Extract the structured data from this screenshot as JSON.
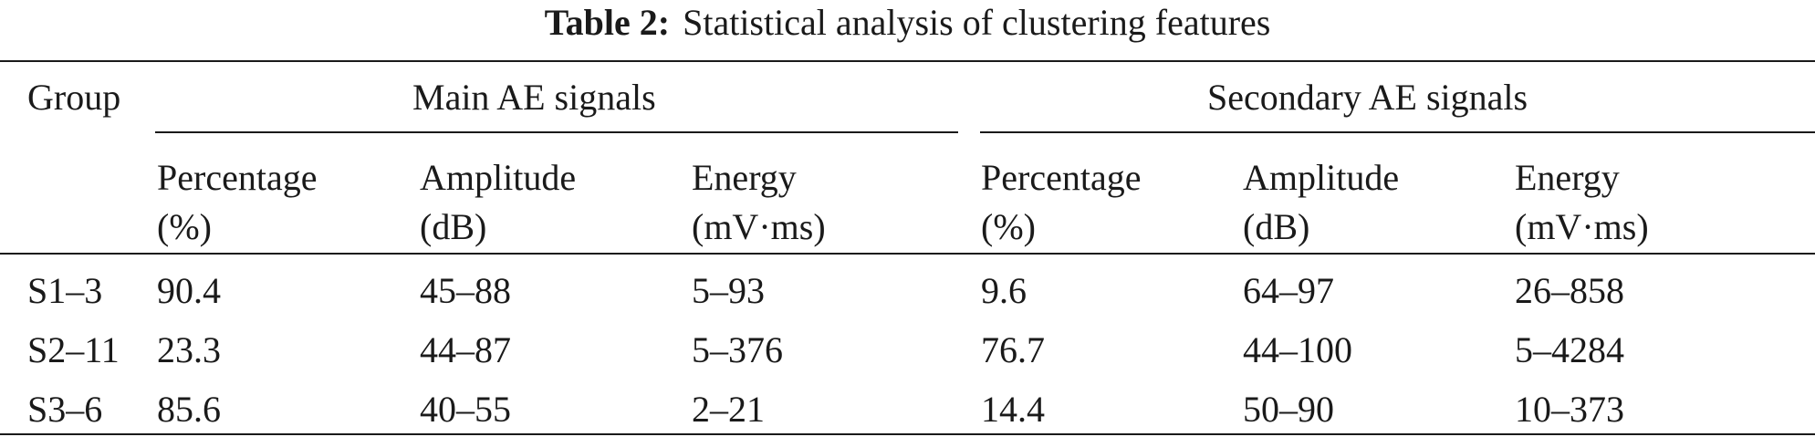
{
  "caption": {
    "label": "Table 2:",
    "title": "Statistical analysis of clustering features"
  },
  "header": {
    "group": "Group",
    "main_group": "Main AE signals",
    "secondary_group": "Secondary AE signals",
    "main_columns": [
      {
        "name": "Percentage",
        "unit": "(%)"
      },
      {
        "name": "Amplitude",
        "unit": "(dB)"
      },
      {
        "name": "Energy",
        "unit": "(mV·ms)"
      }
    ],
    "secondary_columns": [
      {
        "name": "Percentage",
        "unit": "(%)"
      },
      {
        "name": "Amplitude",
        "unit": "(dB)"
      },
      {
        "name": "Energy",
        "unit": "(mV·ms)"
      }
    ]
  },
  "rows": [
    {
      "group": "S1–3",
      "main": [
        "90.4",
        "45–88",
        "5–93"
      ],
      "secondary": [
        "9.6",
        "64–97",
        "26–858"
      ]
    },
    {
      "group": "S2–11",
      "main": [
        "23.3",
        "44–87",
        "5–376"
      ],
      "secondary": [
        "76.7",
        "44–100",
        "5–4284"
      ]
    },
    {
      "group": "S3–6",
      "main": [
        "85.6",
        "40–55",
        "2–21"
      ],
      "secondary": [
        "14.4",
        "50–90",
        "10–373"
      ]
    }
  ]
}
